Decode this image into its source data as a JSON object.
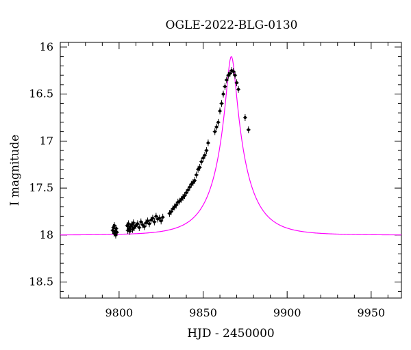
{
  "chart_data": {
    "type": "scatter",
    "title": "OGLE-2022-BLG-0130",
    "xlabel": "HJD - 2450000",
    "ylabel": "I magnitude",
    "xlim": [
      9765,
      9968
    ],
    "ylim": [
      18.67,
      15.95
    ],
    "y_inverted": true,
    "x_ticks": [
      9800,
      9850,
      9900,
      9950
    ],
    "y_ticks": [
      16,
      16.5,
      17,
      17.5,
      18,
      18.5
    ],
    "x_minor_step": 10,
    "y_minor_step": 0.1,
    "grid": false,
    "colors": {
      "data": "#000000",
      "model": "#ff00ff"
    },
    "model": {
      "description_hidden": true,
      "t0": 9866.8,
      "tE": 19,
      "u0": 0.145,
      "I_base": 18.0,
      "blend_fraction": 0.8
    },
    "series": [
      {
        "type": "scatter",
        "x": [
          9796.2,
          9796.6,
          9797.0,
          9797.2,
          9797.6,
          9798.0,
          9798.3,
          9798.7,
          9804.8,
          9805.2,
          9805.6,
          9806.0,
          9806.4,
          9806.8,
          9807.5,
          9808.0,
          9808.5,
          9809.0,
          9810.0,
          9811.0,
          9812.0,
          9813.0,
          9814.0,
          9815.0,
          9816.0,
          9817.0,
          9818.0,
          9819.0,
          9820.0,
          9821.0,
          9822.0,
          9823.0,
          9824.0,
          9825.0,
          9826.0,
          9830.0,
          9831.0,
          9832.0,
          9833.0,
          9834.0,
          9835.0,
          9836.0,
          9837.0,
          9838.0,
          9839.0,
          9840.0,
          9841.0,
          9842.0,
          9843.0,
          9844.0,
          9845.0,
          9846.0,
          9847.0,
          9848.0,
          9849.0,
          9850.0,
          9851.0,
          9852.0,
          9853.0,
          9857.0,
          9858.0,
          9859.0,
          9860.0,
          9861.0,
          9862.0,
          9863.0,
          9864.0,
          9865.0,
          9866.0,
          9867.0,
          9868.0,
          9869.0,
          9870.0,
          9871.0,
          9875.0,
          9877.0
        ],
        "y": [
          17.95,
          17.92,
          17.98,
          17.9,
          17.96,
          18.0,
          17.93,
          17.97,
          17.9,
          17.95,
          17.88,
          17.93,
          17.96,
          17.91,
          17.89,
          17.94,
          17.87,
          17.92,
          17.9,
          17.88,
          17.92,
          17.86,
          17.89,
          17.91,
          17.87,
          17.85,
          17.88,
          17.84,
          17.82,
          17.86,
          17.8,
          17.83,
          17.82,
          17.85,
          17.81,
          17.77,
          17.75,
          17.72,
          17.7,
          17.68,
          17.65,
          17.64,
          17.62,
          17.6,
          17.58,
          17.55,
          17.52,
          17.49,
          17.46,
          17.44,
          17.42,
          17.36,
          17.3,
          17.28,
          17.22,
          17.18,
          17.15,
          17.1,
          17.02,
          16.9,
          16.85,
          16.8,
          16.68,
          16.6,
          16.5,
          16.42,
          16.35,
          16.3,
          16.28,
          16.25,
          16.26,
          16.3,
          16.38,
          16.45,
          16.75,
          16.88
        ]
      }
    ]
  }
}
